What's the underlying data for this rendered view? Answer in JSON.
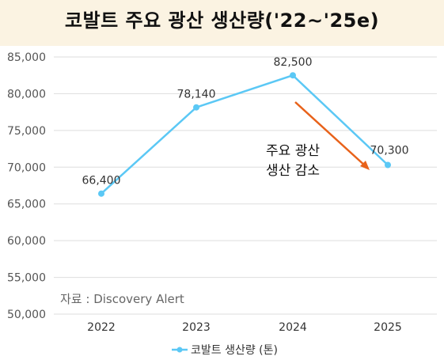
{
  "title": "코발트 주요 광산 생산량('22~'25e)",
  "source": "자료 : Discovery Alert",
  "annotation": [
    "주요 광산",
    "생산 감소"
  ],
  "legend_label": "코발트 생산량 (톤)",
  "colors": {
    "line": "#5bc8f5",
    "arrow": "#e8621a",
    "background": "#fbf3e2",
    "grid": "#dddddd"
  },
  "chart_data": {
    "type": "line",
    "x": [
      "2022",
      "2023",
      "2024",
      "2025"
    ],
    "series": [
      {
        "name": "코발트 생산량 (톤)",
        "values": [
          66400,
          78140,
          82500,
          70300
        ]
      }
    ],
    "data_labels": [
      "66,400",
      "78,140",
      "82,500",
      "70,300"
    ],
    "ylim": [
      50000,
      85000
    ],
    "yticks": [
      "50,000",
      "55,000",
      "60,000",
      "65,000",
      "70,000",
      "75,000",
      "80,000",
      "85,000"
    ],
    "grid": true,
    "legend_position": "bottom"
  }
}
